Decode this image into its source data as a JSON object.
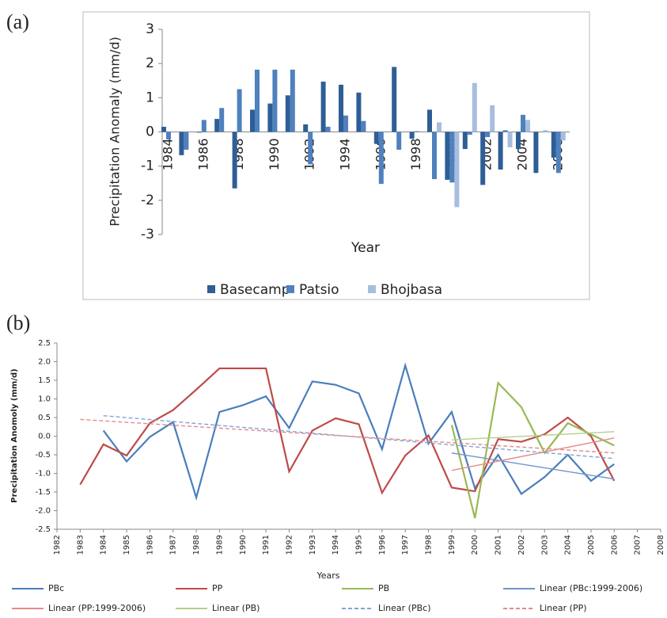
{
  "chart_data": [
    {
      "type": "bar",
      "panel_label": "(a)",
      "x_label": "Year",
      "y_label": "Precipitation Anomaly (mm/d)",
      "categories": [
        "1984",
        null,
        "1986",
        null,
        "1988",
        null,
        "1990",
        null,
        "1992",
        null,
        "1994",
        null,
        "1996",
        null,
        "1998",
        null,
        "2000",
        null,
        "2002",
        null,
        "2004",
        null,
        "2006"
      ],
      "series": [
        {
          "name": "Basecamp",
          "color": "#2e5e96",
          "values": [
            0.15,
            -0.68,
            -0.02,
            0.38,
            -1.65,
            0.65,
            0.83,
            1.07,
            0.22,
            1.47,
            1.38,
            1.15,
            -0.35,
            1.9,
            -0.2,
            0.65,
            -1.4,
            -0.5,
            -1.55,
            -1.1,
            -0.5,
            -1.2,
            -0.75
          ]
        },
        {
          "name": "Patsio",
          "color": "#4f81bd",
          "values": [
            -0.22,
            -0.52,
            0.35,
            0.7,
            1.25,
            1.82,
            1.82,
            1.82,
            -0.95,
            0.15,
            0.48,
            0.32,
            -1.52,
            -0.52,
            0.02,
            -1.38,
            -1.48,
            -0.08,
            -0.15,
            0.05,
            0.5,
            0.0,
            -1.2
          ]
        },
        {
          "name": "Bhojbasa",
          "color": "#a7bde0",
          "values": [
            null,
            null,
            null,
            null,
            null,
            null,
            null,
            null,
            null,
            null,
            null,
            null,
            null,
            null,
            null,
            0.28,
            -2.2,
            1.43,
            0.78,
            -0.45,
            0.35,
            0.05,
            -0.25
          ]
        }
      ],
      "ylim": [
        -3,
        3
      ],
      "yticks": [
        -3,
        -2,
        -1,
        0,
        1,
        2,
        3
      ],
      "legend": "bottom"
    },
    {
      "type": "line",
      "panel_label": "(b)",
      "x_label": "Years",
      "y_label": "Precipitation Anomoly (mm/d)",
      "xlim": [
        1982,
        2008
      ],
      "xticks": [
        1982,
        1983,
        1984,
        1985,
        1986,
        1987,
        1988,
        1989,
        1990,
        1991,
        1992,
        1993,
        1994,
        1995,
        1996,
        1997,
        1998,
        1999,
        2000,
        2001,
        2002,
        2003,
        2004,
        2005,
        2006,
        2007,
        2008
      ],
      "ylim": [
        -2.5,
        2.5
      ],
      "yticks": [
        2.5,
        {
          "value": 2,
          "label": "2.0"
        },
        1.5,
        {
          "value": 1,
          "label": "1.0"
        },
        0.5,
        {
          "value": 0,
          "label": "0.0"
        },
        -0.5,
        {
          "value": -1,
          "label": "-1.0"
        },
        -1.5,
        {
          "value": -2,
          "label": "-2.0"
        },
        -2.5
      ],
      "series": [
        {
          "name": "PBc",
          "color": "#4a7ebb",
          "dashed": false,
          "x": [
            1984,
            1985,
            1986,
            1987,
            1988,
            1989,
            1990,
            1991,
            1992,
            1993,
            1994,
            1995,
            1996,
            1997,
            1998,
            1999,
            2000,
            2001,
            2002,
            2003,
            2004,
            2005,
            2006
          ],
          "values": [
            0.15,
            -0.68,
            -0.02,
            0.38,
            -1.65,
            0.65,
            0.83,
            1.07,
            0.22,
            1.47,
            1.38,
            1.15,
            -0.35,
            1.9,
            -0.2,
            0.65,
            -1.4,
            -0.5,
            -1.55,
            -1.1,
            -0.5,
            -1.2,
            -0.75
          ]
        },
        {
          "name": "PP",
          "color": "#be4b48",
          "dashed": false,
          "x": [
            1983,
            1984,
            1985,
            1986,
            1987,
            1988,
            1989,
            1990,
            1991,
            1992,
            1993,
            1994,
            1995,
            1996,
            1997,
            1998,
            1999,
            2000,
            2001,
            2002,
            2003,
            2004,
            2005,
            2006
          ],
          "values": [
            -1.3,
            -0.22,
            -0.52,
            0.35,
            0.7,
            1.25,
            1.82,
            1.82,
            1.82,
            -0.95,
            0.15,
            0.48,
            0.32,
            -1.52,
            -0.52,
            0.02,
            -1.38,
            -1.48,
            -0.08,
            -0.15,
            0.05,
            0.5,
            0.0,
            -1.2
          ]
        },
        {
          "name": "PB",
          "color": "#98b954",
          "dashed": false,
          "x": [
            1999,
            2000,
            2001,
            2002,
            2003,
            2004,
            2005,
            2006
          ],
          "values": [
            0.3,
            -2.2,
            1.43,
            0.78,
            -0.45,
            0.35,
            0.05,
            -0.25
          ]
        },
        {
          "name": "Linear (PBc:1999-2006)",
          "color": "#6f95c8",
          "dashed": false,
          "x": [
            1999,
            2006
          ],
          "values": [
            -0.45,
            -1.15
          ]
        },
        {
          "name": "Linear (PP:1999-2006)",
          "color": "#e58a8c",
          "dashed": false,
          "x": [
            1999,
            2006
          ],
          "values": [
            -0.92,
            -0.05
          ]
        },
        {
          "name": "Linear (PB)",
          "color": "#b4d08a",
          "dashed": false,
          "x": [
            1999,
            2006
          ],
          "values": [
            -0.1,
            0.12
          ]
        },
        {
          "name": "Linear (PBc)",
          "color": "#7fa4d8",
          "dashed": true,
          "x": [
            1984,
            2006
          ],
          "values": [
            0.55,
            -0.6
          ]
        },
        {
          "name": "Linear (PP)",
          "color": "#e58a8c",
          "dashed": true,
          "x": [
            1983,
            2006
          ],
          "values": [
            0.45,
            -0.45
          ]
        }
      ],
      "legend": "bottom"
    }
  ]
}
